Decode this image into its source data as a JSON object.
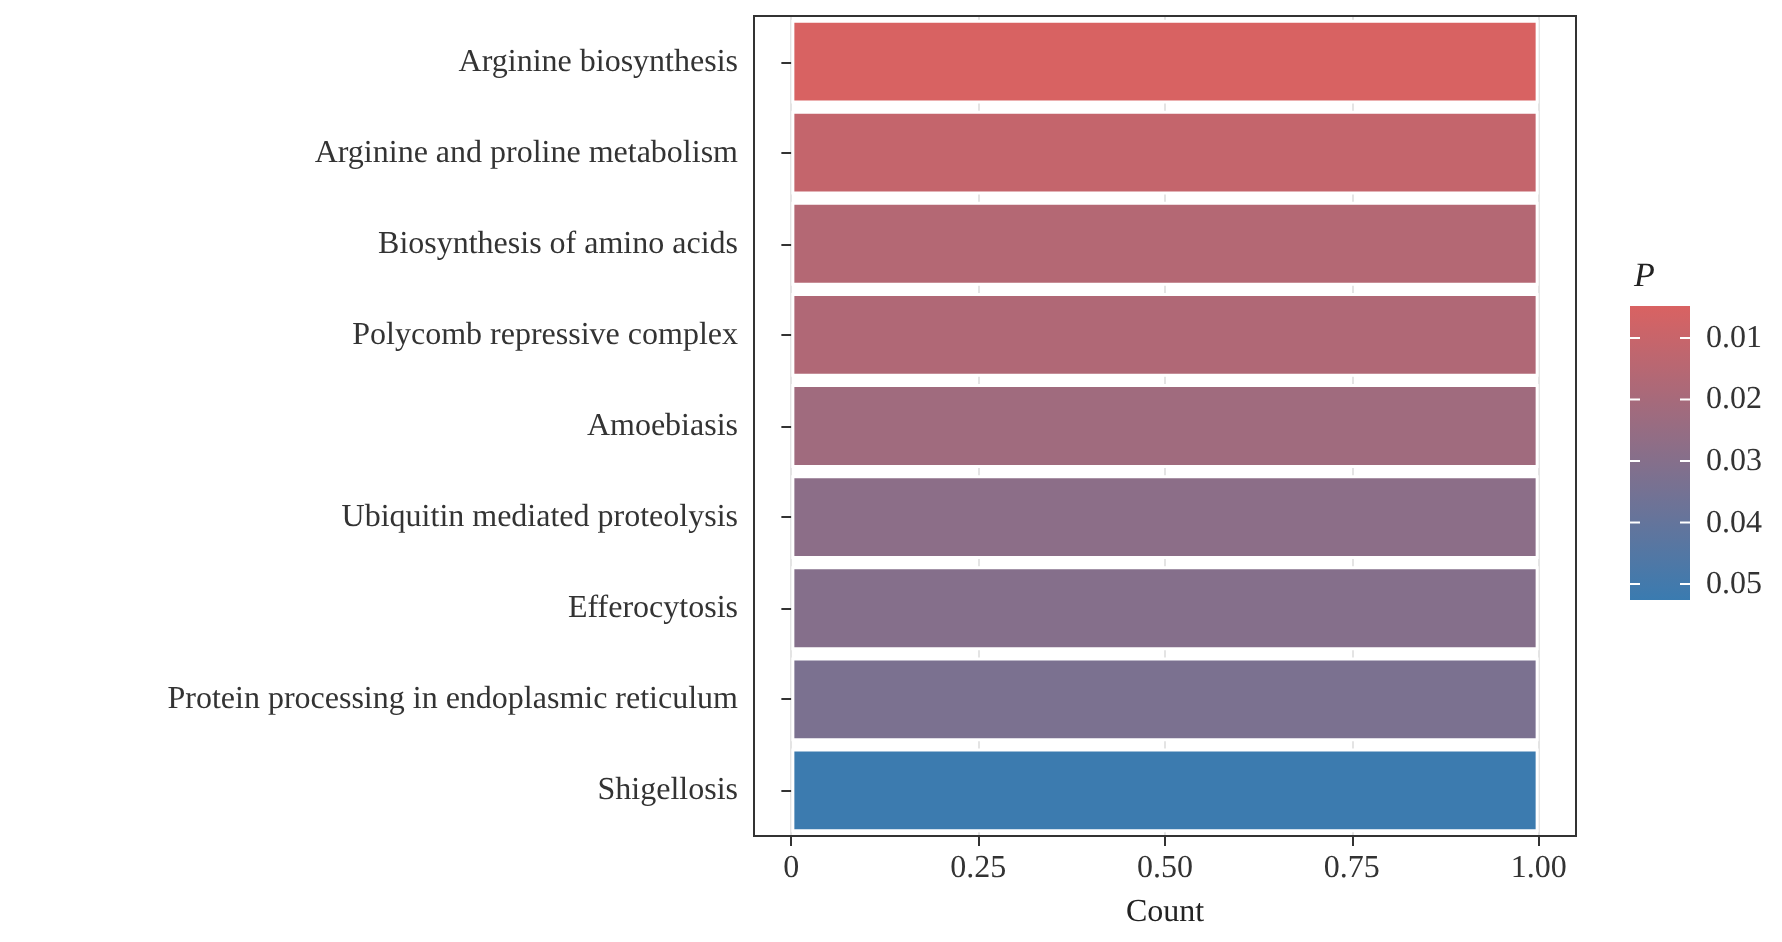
{
  "chart_data": {
    "type": "bar",
    "orientation": "horizontal",
    "xlabel": "Count",
    "clabel": "P",
    "categories": [
      "Arginine biosynthesis",
      "Arginine and proline metabolism",
      "Biosynthesis of amino acids",
      "Polycomb repressive complex",
      "Amoebiasis",
      "Ubiquitin mediated proteolysis",
      "Efferocytosis",
      "Protein processing in endoplasmic reticulum",
      "Shigellosis"
    ],
    "values": [
      1,
      1,
      1,
      1,
      1,
      1,
      1,
      1,
      1
    ],
    "cvalues": [
      0.005,
      0.011,
      0.016,
      0.017,
      0.022,
      0.028,
      0.03,
      0.033,
      0.052
    ],
    "clim": [
      0.0048,
      0.0526
    ],
    "cticks": [
      0.01,
      0.02,
      0.03,
      0.04,
      0.05
    ],
    "xlim": [
      -0.05,
      1.05
    ],
    "xticks": [
      0,
      {
        "value": 0.25,
        "label": "0.25"
      },
      {
        "value": 0.5,
        "label": "0.50"
      },
      {
        "value": 0.75,
        "label": "0.75"
      },
      {
        "value": 1,
        "label": "1.00"
      }
    ],
    "grid": "x"
  }
}
